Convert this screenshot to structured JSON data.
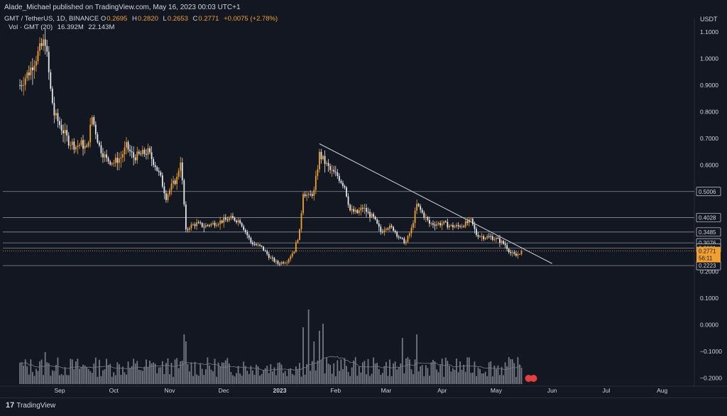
{
  "header": {
    "publisher": "Alade_Michael published on TradingView.com, May 16, 2023 00:03 UTC+1",
    "symbol": "GMT / TetherUS, 1D, BINANCE",
    "ohlc": [
      {
        "k": "O",
        "v": "0.2695"
      },
      {
        "k": "H",
        "v": "0.2820"
      },
      {
        "k": "L",
        "v": "0.2653"
      },
      {
        "k": "C",
        "v": "0.2771"
      }
    ],
    "change": "+0.0075 (+2.78%)",
    "volume_label": "Vol · GMT (20)",
    "volume_values": [
      "16.392M",
      "22.143M"
    ]
  },
  "axis_unit": "USDT",
  "footer": {
    "brand": "TradingView",
    "logo": "17"
  },
  "colors": {
    "background": "#131722",
    "candle_up": "#f0a030",
    "candle_down": "#e8e8e8",
    "level_line": "#8a8d96",
    "trendline": "#d1d4dc",
    "price_tag": "#f0a030",
    "volume_bar": "#9598a1"
  },
  "chart_data": {
    "type": "candlestick",
    "title": "GMT / TetherUS, 1D, BINANCE",
    "x_tick_labels": [
      "Sep",
      "Oct",
      "Nov",
      "Dec",
      "2023",
      "Feb",
      "Mar",
      "Apr",
      "May",
      "Jun",
      "Jul",
      "Aug"
    ],
    "y_tick_labels": [
      "1.1000",
      "1.0000",
      "0.9000",
      "0.8000",
      "0.7000",
      "0.6000",
      "0.3485",
      "0.3076",
      "0.2881",
      "0.2000",
      "0.1000",
      "0.0000",
      "−0.1000",
      "−0.2000"
    ],
    "y_tick_values": [
      1.1,
      1.0,
      0.9,
      0.8,
      0.7,
      0.6,
      0.3485,
      0.3076,
      0.2881,
      0.2,
      0.1,
      0.0,
      -0.1,
      -0.2
    ],
    "horizontal_levels": [
      0.5006,
      0.4028,
      0.3485,
      0.3076,
      0.2881,
      0.2223
    ],
    "level_tags": [
      "0.5006",
      "0.4028",
      "0.3485",
      "0.3076",
      "0.2881",
      "0.2223"
    ],
    "current_price": 0.2771,
    "current_price_label": "0.2771",
    "countdown_label": "56:11",
    "trendline": {
      "from": {
        "date": "2023-01-23",
        "price": 0.68
      },
      "to": {
        "date": "2023-06-01",
        "price": 0.23
      }
    },
    "price_path": [
      [
        "2022-08-10",
        0.9
      ],
      [
        "2022-08-15",
        0.95
      ],
      [
        "2022-08-20",
        1.02
      ],
      [
        "2022-08-24",
        1.07
      ],
      [
        "2022-08-27",
        0.88
      ],
      [
        "2022-08-29",
        0.79
      ],
      [
        "2022-09-02",
        0.74
      ],
      [
        "2022-09-06",
        0.69
      ],
      [
        "2022-09-10",
        0.67
      ],
      [
        "2022-09-13",
        0.68
      ],
      [
        "2022-09-16",
        0.66
      ],
      [
        "2022-09-19",
        0.78
      ],
      [
        "2022-09-23",
        0.67
      ],
      [
        "2022-09-27",
        0.62
      ],
      [
        "2022-10-01",
        0.61
      ],
      [
        "2022-10-05",
        0.63
      ],
      [
        "2022-10-08",
        0.67
      ],
      [
        "2022-10-12",
        0.63
      ],
      [
        "2022-10-16",
        0.64
      ],
      [
        "2022-10-20",
        0.65
      ],
      [
        "2022-10-24",
        0.6
      ],
      [
        "2022-10-27",
        0.55
      ],
      [
        "2022-10-30",
        0.48
      ],
      [
        "2022-11-02",
        0.52
      ],
      [
        "2022-11-05",
        0.55
      ],
      [
        "2022-11-07",
        0.62
      ],
      [
        "2022-11-09",
        0.45
      ],
      [
        "2022-11-10",
        0.35
      ],
      [
        "2022-11-12",
        0.37
      ],
      [
        "2022-11-16",
        0.38
      ],
      [
        "2022-11-20",
        0.37
      ],
      [
        "2022-11-25",
        0.38
      ],
      [
        "2022-11-30",
        0.39
      ],
      [
        "2022-12-05",
        0.4
      ],
      [
        "2022-12-10",
        0.39
      ],
      [
        "2022-12-13",
        0.35
      ],
      [
        "2022-12-16",
        0.31
      ],
      [
        "2022-12-22",
        0.29
      ],
      [
        "2022-12-27",
        0.25
      ],
      [
        "2022-12-31",
        0.23
      ],
      [
        "2023-01-05",
        0.24
      ],
      [
        "2023-01-09",
        0.28
      ],
      [
        "2023-01-12",
        0.35
      ],
      [
        "2023-01-14",
        0.5
      ],
      [
        "2023-01-17",
        0.48
      ],
      [
        "2023-01-20",
        0.5
      ],
      [
        "2023-01-23",
        0.64
      ],
      [
        "2023-01-25",
        0.62
      ],
      [
        "2023-01-29",
        0.58
      ],
      [
        "2023-02-02",
        0.56
      ],
      [
        "2023-02-06",
        0.52
      ],
      [
        "2023-02-09",
        0.43
      ],
      [
        "2023-02-13",
        0.42
      ],
      [
        "2023-02-16",
        0.44
      ],
      [
        "2023-02-19",
        0.42
      ],
      [
        "2023-02-22",
        0.4
      ],
      [
        "2023-02-26",
        0.35
      ],
      [
        "2023-03-01",
        0.37
      ],
      [
        "2023-03-05",
        0.36
      ],
      [
        "2023-03-09",
        0.32
      ],
      [
        "2023-03-12",
        0.31
      ],
      [
        "2023-03-15",
        0.36
      ],
      [
        "2023-03-18",
        0.45
      ],
      [
        "2023-03-21",
        0.42
      ],
      [
        "2023-03-25",
        0.38
      ],
      [
        "2023-03-29",
        0.38
      ],
      [
        "2023-04-02",
        0.38
      ],
      [
        "2023-04-06",
        0.37
      ],
      [
        "2023-04-10",
        0.37
      ],
      [
        "2023-04-14",
        0.38
      ],
      [
        "2023-04-17",
        0.39
      ],
      [
        "2023-04-20",
        0.34
      ],
      [
        "2023-04-24",
        0.33
      ],
      [
        "2023-04-28",
        0.33
      ],
      [
        "2023-05-02",
        0.32
      ],
      [
        "2023-05-06",
        0.3
      ],
      [
        "2023-05-09",
        0.27
      ],
      [
        "2023-05-12",
        0.26
      ],
      [
        "2023-05-15",
        0.2771
      ]
    ],
    "volume": {
      "label": "Vol · GMT (20)",
      "last": 16.392,
      "ma20": 22.143,
      "unit": "M",
      "spikes": [
        [
          "2022-08-10",
          30
        ],
        [
          "2022-08-24",
          45
        ],
        [
          "2022-11-09",
          70
        ],
        [
          "2022-11-10",
          60
        ],
        [
          "2022-12-31",
          30
        ],
        [
          "2023-01-14",
          80
        ],
        [
          "2023-01-17",
          105
        ],
        [
          "2023-01-20",
          60
        ],
        [
          "2023-01-23",
          75
        ],
        [
          "2023-01-25",
          85
        ],
        [
          "2023-03-10",
          65
        ],
        [
          "2023-03-18",
          70
        ]
      ]
    }
  }
}
